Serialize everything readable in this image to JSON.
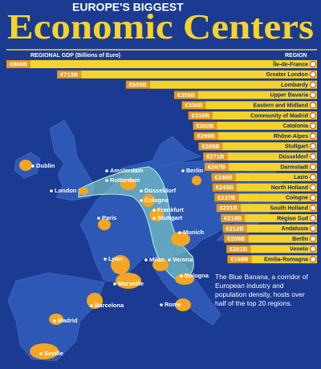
{
  "chart_data": {
    "type": "bar",
    "orientation": "horizontal",
    "subtitle": "EUROPE'S BIGGEST",
    "title": "Economic Centers",
    "x_label": "REGIONAL GDP (Billions of Euro)",
    "y_label": "REGION",
    "categories": [
      "Île-de-France",
      "Greater London",
      "Lombardy",
      "Upper Bavaria",
      "Eastern and Midland",
      "Community of Madrid",
      "Catalonia",
      "Rhône-Alpes",
      "Stuttgart",
      "Düsseldorf",
      "Darmstadt",
      "Lazio",
      "North Holland",
      "Cologne",
      "South Holland",
      "Région Sud",
      "Andalusia",
      "Berlin",
      "Veneto",
      "Emilia-Romagna"
    ],
    "values": [
      866,
      713,
      505,
      359,
      336,
      316,
      302,
      299,
      285,
      271,
      267,
      246,
      243,
      237,
      231,
      218,
      212,
      208,
      201,
      198
    ],
    "value_labels": [
      "€866B",
      "€713B",
      "€505B",
      "€359B",
      "€336B",
      "€316B",
      "€302B",
      "€299B",
      "€285B",
      "€271B",
      "€267B",
      "€246B",
      "€243B",
      "€237B",
      "€231B",
      "€218B",
      "€212B",
      "€208B",
      "€201B",
      "€198B"
    ],
    "color": "#f6d32a",
    "annotation": "The Blue Banana, a corridor of European industry and population density, hosts over half of the top 20 regions."
  },
  "map": {
    "cities": [
      "Dublin",
      "Amsterdam",
      "Rotterdam",
      "London",
      "Berlin",
      "Düsseldorf",
      "Cologne",
      "Frankfurt",
      "Stuttgart",
      "Paris",
      "Munich",
      "Lyon",
      "Milan",
      "Verona",
      "Marseille",
      "Bologna",
      "Barcelona",
      "Rome",
      "Madrid",
      "Seville"
    ]
  }
}
